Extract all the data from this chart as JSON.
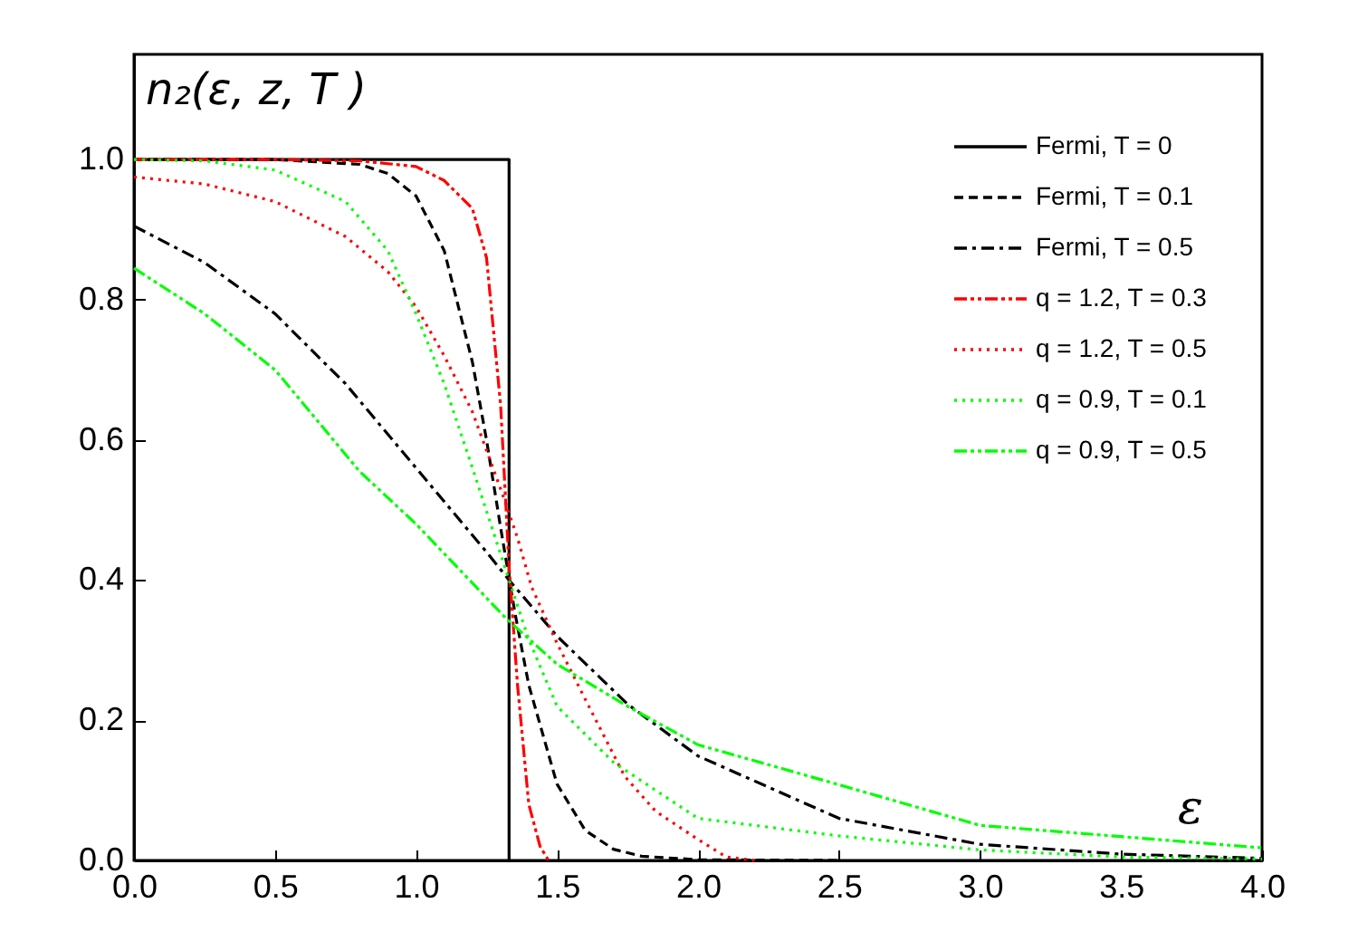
{
  "chart_data": {
    "type": "line",
    "ylabel": "n₂(ε, z, T )",
    "xlabel": "ε",
    "xlim": [
      0,
      4
    ],
    "ylim": [
      0,
      1.15
    ],
    "xticks": [
      {
        "value": 0,
        "label": "0.0"
      },
      {
        "value": 0.5,
        "label": "0.5"
      },
      {
        "value": 1,
        "label": "1.0"
      },
      {
        "value": 1.5,
        "label": "1.5"
      },
      {
        "value": 2,
        "label": "2.0"
      },
      {
        "value": 2.5,
        "label": "2.5"
      },
      {
        "value": 3,
        "label": "3.0"
      },
      {
        "value": 3.5,
        "label": "3.5"
      },
      {
        "value": 4,
        "label": "4.0"
      }
    ],
    "yticks": [
      {
        "value": 0,
        "label": "0.0"
      },
      {
        "value": 0.2,
        "label": "0.2"
      },
      {
        "value": 0.4,
        "label": "0.4"
      },
      {
        "value": 0.6,
        "label": "0.6"
      },
      {
        "value": 0.8,
        "label": "0.8"
      },
      {
        "value": 1,
        "label": "1.0"
      }
    ],
    "grid": false,
    "legend": "top right",
    "marker": "none",
    "series": [
      {
        "name": "Fermi, T = 0",
        "color": "#000000",
        "line_style": "solid",
        "x": [
          0,
          1.33,
          1.33
        ],
        "values": [
          1,
          1,
          0
        ]
      },
      {
        "name": "Fermi, T = 0.1",
        "color": "#000000",
        "line_style": "dashed",
        "x": [
          0,
          0.5,
          0.8,
          0.9,
          1.0,
          1.1,
          1.2,
          1.25,
          1.3,
          1.35,
          1.4,
          1.5,
          1.6,
          1.7,
          1.8,
          2.0,
          2.5
        ],
        "values": [
          1,
          1,
          0.993,
          0.98,
          0.948,
          0.87,
          0.711,
          0.6,
          0.475,
          0.355,
          0.25,
          0.109,
          0.043,
          0.016,
          0.006,
          0.001,
          0
        ]
      },
      {
        "name": "Fermi, T = 0.5",
        "color": "#000000",
        "line_style": "dashdot",
        "x": [
          0,
          0.25,
          0.5,
          0.75,
          1.0,
          1.25,
          1.33,
          1.5,
          1.75,
          2.0,
          2.5,
          3.0,
          3.5,
          4.0
        ],
        "values": [
          0.905,
          0.853,
          0.78,
          0.68,
          0.56,
          0.44,
          0.4,
          0.32,
          0.223,
          0.149,
          0.06,
          0.023,
          0.009,
          0.003
        ]
      },
      {
        "name": "q = 1.2, T = 0.3",
        "color": "#ff0000",
        "line_style": "dashdotdot",
        "x": [
          0,
          0.5,
          0.8,
          1.0,
          1.1,
          1.2,
          1.25,
          1.3,
          1.33,
          1.36,
          1.4,
          1.44,
          1.47
        ],
        "values": [
          1,
          1,
          0.998,
          0.99,
          0.97,
          0.93,
          0.86,
          0.65,
          0.42,
          0.25,
          0.08,
          0.02,
          0
        ]
      },
      {
        "name": "q = 1.2, T = 0.5",
        "color": "#ff0000",
        "line_style": "dotted",
        "x": [
          0,
          0.25,
          0.5,
          0.75,
          0.9,
          1.0,
          1.1,
          1.2,
          1.3,
          1.36,
          1.41,
          1.5,
          1.6,
          1.74,
          1.85,
          2.0,
          2.1,
          2.2
        ],
        "values": [
          0.975,
          0.965,
          0.94,
          0.89,
          0.84,
          0.79,
          0.72,
          0.64,
          0.53,
          0.46,
          0.39,
          0.31,
          0.23,
          0.12,
          0.07,
          0.03,
          0.005,
          0
        ]
      },
      {
        "name": "q = 0.9, T = 0.1",
        "color": "#00ff00",
        "line_style": "dotted",
        "x": [
          0,
          0.25,
          0.5,
          0.75,
          0.9,
          1.0,
          1.1,
          1.2,
          1.33,
          1.4,
          1.5,
          1.7,
          2.0,
          2.5,
          3.0,
          3.5,
          4.0
        ],
        "values": [
          1,
          0.998,
          0.985,
          0.94,
          0.87,
          0.78,
          0.68,
          0.56,
          0.4,
          0.315,
          0.22,
          0.14,
          0.06,
          0.035,
          0.015,
          0.005,
          0.002
        ]
      },
      {
        "name": "q = 0.9, T = 0.5",
        "color": "#00ff00",
        "line_style": "dashdotdot",
        "x": [
          0,
          0.25,
          0.5,
          0.8,
          1.0,
          1.32,
          1.5,
          1.75,
          2.0,
          2.5,
          3.0,
          3.5,
          4.0
        ],
        "values": [
          0.845,
          0.78,
          0.7,
          0.555,
          0.48,
          0.345,
          0.28,
          0.22,
          0.165,
          0.108,
          0.05,
          0.034,
          0.018
        ]
      }
    ]
  }
}
